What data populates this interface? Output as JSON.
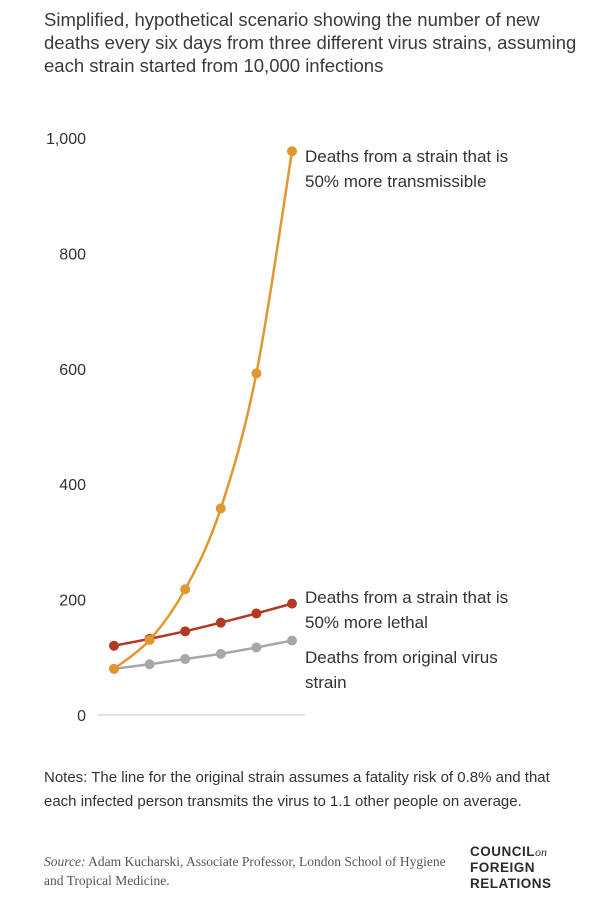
{
  "title": "Simplified, hypothetical scenario showing the number of new deaths every six days from three different virus strains, assuming each strain started from 10,000 infections",
  "chart_data": {
    "type": "line",
    "x": [
      1,
      2,
      3,
      4,
      5,
      6
    ],
    "ylim": [
      0,
      1000
    ],
    "yticks": [
      0,
      200,
      400,
      600,
      800,
      1000
    ],
    "ytick_labels": [
      "0",
      "200",
      "400",
      "600",
      "800",
      "1,000"
    ],
    "grid": false,
    "series": [
      {
        "name": "Deaths from a strain that is 50% more transmissible",
        "label_lines": [
          "Deaths from a strain that is",
          "50% more transmissible"
        ],
        "color": "#e0972f",
        "values": [
          80,
          130,
          218,
          358,
          592,
          977
        ]
      },
      {
        "name": "Deaths from a strain that is 50% more lethal",
        "label_lines": [
          "Deaths from a strain that is",
          "50% more lethal"
        ],
        "color": "#b33a22",
        "values": [
          120,
          132,
          145,
          160,
          176,
          193
        ]
      },
      {
        "name": "Deaths from original virus strain",
        "label_lines": [
          "Deaths from original virus",
          "strain"
        ],
        "color": "#a5a8ab",
        "values": [
          80,
          88,
          97,
          106,
          117,
          129
        ]
      }
    ]
  },
  "notes": "Notes: The line for the original strain assumes a fatality risk of 0.8% and that each infected person transmits the virus to 1.1 other people on average.",
  "source": {
    "prefix": "Source:",
    "text": " Adam Kucharski, Associate Professor, London School of Hygiene and Tropical Medicine."
  },
  "logo": {
    "line1": "COUNCIL",
    "on": "on",
    "line2": "FOREIGN",
    "line3": "RELATIONS"
  }
}
